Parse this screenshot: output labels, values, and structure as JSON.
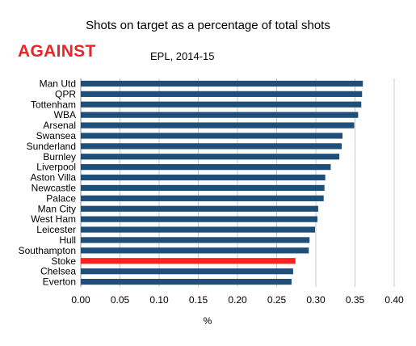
{
  "chart_data": {
    "type": "bar",
    "orientation": "horizontal",
    "title": "Shots on target as a percentage of total shots",
    "subtitle": "EPL, 2014-15",
    "tag": "AGAINST",
    "xlabel": "%",
    "ylabel": "",
    "xlim": [
      0,
      0.4
    ],
    "xticks": [
      "0.00",
      "0.05",
      "0.10",
      "0.15",
      "0.20",
      "0.25",
      "0.30",
      "0.35",
      "0.40"
    ],
    "grid": "vertical",
    "legend": "none",
    "categories": [
      "Man Utd",
      "QPR",
      "Tottenham",
      "WBA",
      "Arsenal",
      "Swansea",
      "Sunderland",
      "Burnley",
      "Liverpool",
      "Aston Villa",
      "Newcastle",
      "Palace",
      "Man City",
      "West Ham",
      "Leicester",
      "Hull",
      "Southampton",
      "Stoke",
      "Chelsea",
      "Everton"
    ],
    "values": [
      0.36,
      0.359,
      0.358,
      0.354,
      0.349,
      0.334,
      0.333,
      0.33,
      0.319,
      0.312,
      0.311,
      0.31,
      0.303,
      0.302,
      0.299,
      0.292,
      0.291,
      0.274,
      0.271,
      0.269
    ],
    "highlight": "Stoke",
    "colors": {
      "bar": "#1f4e79",
      "highlight": "#ff2020",
      "grid": "#c8c8c8",
      "tag": "#e8262a"
    }
  }
}
